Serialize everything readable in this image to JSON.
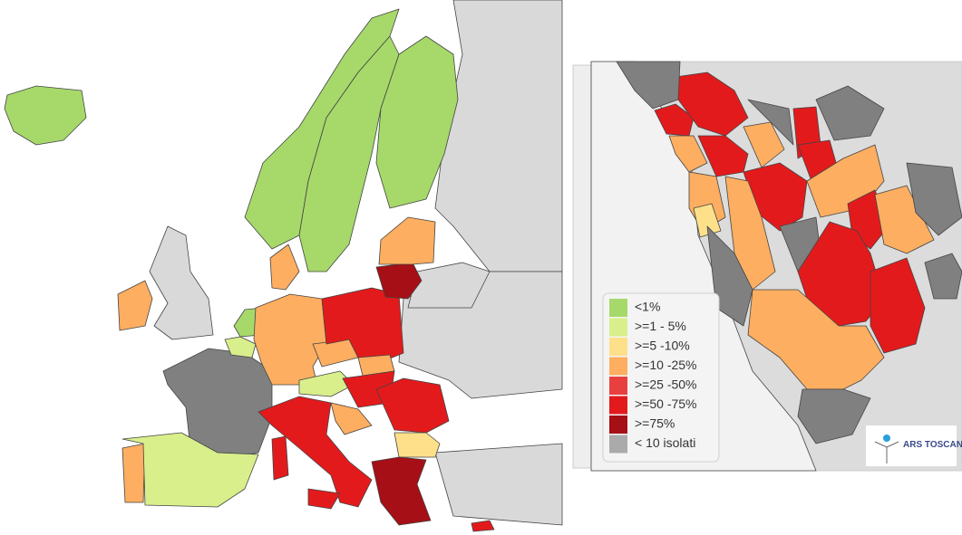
{
  "legend": {
    "items": [
      {
        "label": "<1%",
        "color": "#a6d96a"
      },
      {
        "label": ">=1 - 5%",
        "color": "#d9ef8b"
      },
      {
        "label": ">=5 -10%",
        "color": "#fee08b"
      },
      {
        "label": ">=10 -25%",
        "color": "#fdae61"
      },
      {
        "label": ">=25 -50%",
        "color": "#e8403f"
      },
      {
        "label": ">=50 -75%",
        "color": "#e31a1c"
      },
      {
        "label": ">=75%",
        "color": "#a50f15"
      },
      {
        "label": "< 10 isolati",
        "color": "#aaaaaa"
      }
    ]
  },
  "logo": {
    "text": "ARS TOSCANA"
  }
}
